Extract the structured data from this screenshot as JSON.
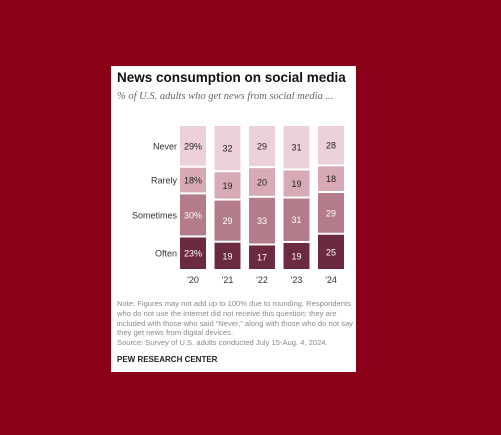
{
  "title": "News consumption on social media",
  "subtitle": "% of U.S. adults who get news from social media ...",
  "chart_data": {
    "type": "bar",
    "stacked": true,
    "orientation": "vertical",
    "categories": [
      "'20",
      "'21",
      "'22",
      "'23",
      "'24"
    ],
    "series": [
      {
        "name": "Often",
        "values": [
          23,
          19,
          17,
          19,
          25
        ],
        "color": "#6b2a3e",
        "label_color": "#ffffff"
      },
      {
        "name": "Sometimes",
        "values": [
          30,
          29,
          33,
          31,
          29
        ],
        "color": "#b47c8a",
        "label_color": "#ffffff"
      },
      {
        "name": "Rarely",
        "values": [
          18,
          19,
          20,
          19,
          18
        ],
        "color": "#d7aab6",
        "label_color": "#222222"
      },
      {
        "name": "Never",
        "values": [
          29,
          32,
          29,
          31,
          28
        ],
        "color": "#ecd1da",
        "label_color": "#222222"
      }
    ],
    "first_column_percent_sign": true,
    "legend": "left-inline",
    "grid": false
  },
  "note": "Note: Figures may not add up to 100% due to rounding. Respondents who do not use the internet did not receive this question; they are included with those who said “Never,” along with those who do not say they get news from digital devices.",
  "source": "Source: Survey of U.S. adults conducted July 15-Aug. 4, 2024.",
  "brand": "PEW RESEARCH CENTER"
}
